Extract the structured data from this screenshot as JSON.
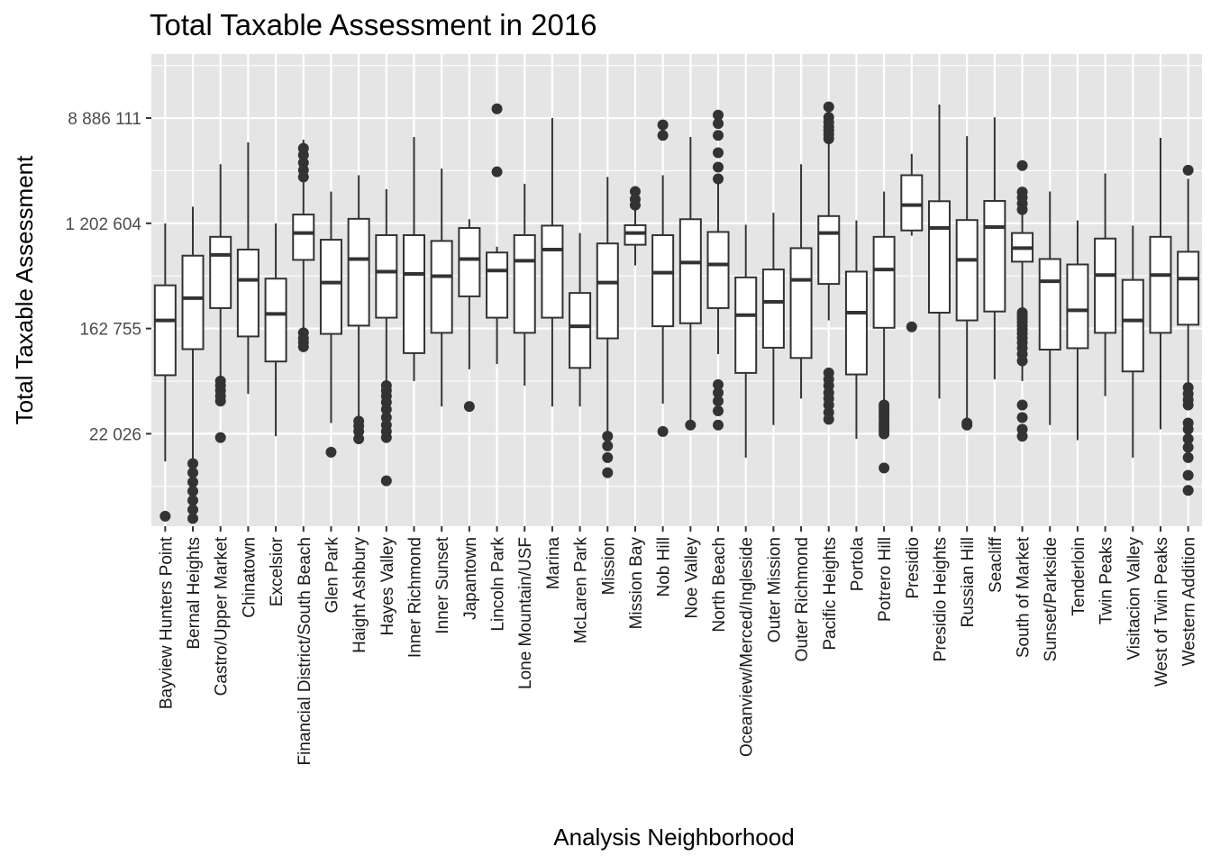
{
  "chart_data": {
    "type": "boxplot",
    "title": "Total Taxable Assessment in 2016",
    "xlabel": "Analysis Neighborhood",
    "ylabel": "Total Taxable Assessment",
    "y_scale": "log10",
    "yticks": [
      22026,
      162755,
      1202604,
      8886111
    ],
    "ytick_labels": [
      "22 026",
      "162 755",
      "1 202 604",
      "8 886 111"
    ],
    "ylim": [
      3800,
      30000000
    ],
    "grid": true,
    "legend": "none",
    "colors": {
      "panel": "#e5e5e5",
      "grid": "#ffffff",
      "box_fill": "#ffffff",
      "box_line": "#333333",
      "outlier": "#333333"
    },
    "categories": [
      "Bayview Hunters Point",
      "Bernal Heights",
      "Castro/Upper Market",
      "Chinatown",
      "Excelsior",
      "Financial District/South Beach",
      "Glen Park",
      "Haight Ashbury",
      "Hayes Valley",
      "Inner Richmond",
      "Inner Sunset",
      "Japantown",
      "Lincoln Park",
      "Lone Mountain/USF",
      "Marina",
      "McLaren Park",
      "Mission",
      "Mission Bay",
      "Nob Hill",
      "Noe Valley",
      "North Beach",
      "Oceanview/Merced/Ingleside",
      "Outer Mission",
      "Outer Richmond",
      "Pacific Heights",
      "Portola",
      "Potrero Hill",
      "Presidio",
      "Presidio Heights",
      "Russian Hill",
      "Seacliff",
      "South of Market",
      "Sunset/Parkside",
      "Tenderloin",
      "Twin Peaks",
      "Visitacion Valley",
      "West of Twin Peaks",
      "Western Addition"
    ],
    "boxes": [
      {
        "min": 13000,
        "q1": 67000,
        "median": 190000,
        "q3": 370000,
        "max": 1200000,
        "outliers": [
          4600
        ]
      },
      {
        "min": 4000,
        "q1": 110000,
        "median": 290000,
        "q3": 650000,
        "max": 1650000,
        "outliers": [
          4400,
          5200,
          6200,
          7400,
          8800,
          10500,
          12500
        ]
      },
      {
        "min": 40000,
        "q1": 240000,
        "median": 660000,
        "q3": 930000,
        "max": 3700000,
        "outliers": [
          20500,
          41000,
          45000,
          50000,
          55000,
          60000
        ]
      },
      {
        "min": 47000,
        "q1": 140000,
        "median": 410000,
        "q3": 730000,
        "max": 5600000,
        "outliers": []
      },
      {
        "min": 21000,
        "q1": 87000,
        "median": 215000,
        "q3": 420000,
        "max": 1200000,
        "outliers": []
      },
      {
        "min": 160000,
        "q1": 600000,
        "median": 1000000,
        "q3": 1420000,
        "max": 5900000,
        "outliers": [
          115000,
          125000,
          135000,
          150000,
          2900000,
          3300000,
          3800000,
          4400000,
          5000000
        ]
      },
      {
        "min": 27000,
        "q1": 147000,
        "median": 390000,
        "q3": 880000,
        "max": 2200000,
        "outliers": [
          15500
        ]
      },
      {
        "min": 24000,
        "q1": 172000,
        "median": 610000,
        "q3": 1310000,
        "max": 3000000,
        "outliers": [
          20000,
          23000,
          25500,
          28000
        ]
      },
      {
        "min": 30000,
        "q1": 200000,
        "median": 480000,
        "q3": 960000,
        "max": 2300000,
        "outliers": [
          9000,
          20500,
          23000,
          26000,
          30000,
          35000,
          40000,
          45000,
          50000,
          55000
        ]
      },
      {
        "min": 60000,
        "q1": 102000,
        "median": 460000,
        "q3": 960000,
        "max": 6200000,
        "outliers": []
      },
      {
        "min": 37000,
        "q1": 150000,
        "median": 440000,
        "q3": 860000,
        "max": 3400000,
        "outliers": []
      },
      {
        "min": 75000,
        "q1": 300000,
        "median": 610000,
        "q3": 1100000,
        "max": 1300000,
        "outliers": [
          37000
        ]
      },
      {
        "min": 83000,
        "q1": 200000,
        "median": 490000,
        "q3": 690000,
        "max": 770000,
        "outliers": [
          3200000,
          10600000
        ]
      },
      {
        "min": 55000,
        "q1": 150000,
        "median": 590000,
        "q3": 960000,
        "max": 2550000,
        "outliers": []
      },
      {
        "min": 37000,
        "q1": 200000,
        "median": 730000,
        "q3": 1150000,
        "max": 8900000,
        "outliers": []
      },
      {
        "min": 37000,
        "q1": 77000,
        "median": 170000,
        "q3": 320000,
        "max": 1000000,
        "outliers": []
      },
      {
        "min": 23000,
        "q1": 135000,
        "median": 390000,
        "q3": 820000,
        "max": 2900000,
        "outliers": [
          10500,
          14000,
          17500,
          21000
        ]
      },
      {
        "min": 540000,
        "q1": 800000,
        "median": 1000000,
        "q3": 1160000,
        "max": 2100000,
        "outliers": [
          1700000,
          1900000,
          2200000
        ]
      },
      {
        "min": 39000,
        "q1": 170000,
        "median": 470000,
        "q3": 960000,
        "max": 3000000,
        "outliers": [
          23000,
          6400000,
          7800000
        ]
      },
      {
        "min": 26000,
        "q1": 180000,
        "median": 570000,
        "q3": 1300000,
        "max": 6200000,
        "outliers": [
          26000
        ]
      },
      {
        "min": 100000,
        "q1": 240000,
        "median": 550000,
        "q3": 1020000,
        "max": 2800000,
        "outliers": [
          26000,
          34000,
          41000,
          48000,
          56000,
          2800000,
          3500000,
          4600000,
          6400000,
          8000000,
          9400000
        ]
      },
      {
        "min": 14000,
        "q1": 70000,
        "median": 210000,
        "q3": 430000,
        "max": 1170000,
        "outliers": []
      },
      {
        "min": 26000,
        "q1": 113000,
        "median": 270000,
        "q3": 500000,
        "max": 1470000,
        "outliers": []
      },
      {
        "min": 43000,
        "q1": 93000,
        "median": 410000,
        "q3": 750000,
        "max": 3700000,
        "outliers": []
      },
      {
        "min": 190000,
        "q1": 380000,
        "median": 1000000,
        "q3": 1380000,
        "max": 10500000,
        "outliers": [
          29000,
          33000,
          38000,
          43000,
          48000,
          55000,
          62000,
          70000,
          6000000,
          6500000,
          7000000,
          7500000,
          8200000,
          9000000,
          11000000
        ]
      },
      {
        "min": 20000,
        "q1": 68000,
        "median": 220000,
        "q3": 480000,
        "max": 1270000,
        "outliers": []
      },
      {
        "min": 26000,
        "q1": 165000,
        "median": 500000,
        "q3": 930000,
        "max": 2200000,
        "outliers": [
          11500,
          22000,
          23500,
          25000,
          26500,
          28000,
          30000,
          32000,
          34000,
          36000,
          38000
        ]
      },
      {
        "min": 950000,
        "q1": 1050000,
        "median": 1700000,
        "q3": 3000000,
        "max": 4500000,
        "outliers": [
          168000
        ]
      },
      {
        "min": 43000,
        "q1": 220000,
        "median": 1100000,
        "q3": 1830000,
        "max": 11500000,
        "outliers": []
      },
      {
        "min": 26000,
        "q1": 190000,
        "median": 600000,
        "q3": 1280000,
        "max": 6300000,
        "outliers": [
          26000,
          27000
        ]
      },
      {
        "min": 62000,
        "q1": 225000,
        "median": 1120000,
        "q3": 1840000,
        "max": 9000000,
        "outliers": []
      },
      {
        "min": 60000,
        "q1": 580000,
        "median": 750000,
        "q3": 1000000,
        "max": 1450000,
        "outliers": [
          21000,
          24000,
          30000,
          38000,
          88000,
          100000,
          112000,
          124000,
          136000,
          148000,
          160000,
          172000,
          184000,
          196000,
          208000,
          220000,
          1560000,
          1750000,
          1960000,
          2180000,
          3600000
        ]
      },
      {
        "min": 26000,
        "q1": 109000,
        "median": 400000,
        "q3": 610000,
        "max": 2200000,
        "outliers": []
      },
      {
        "min": 19500,
        "q1": 112000,
        "median": 230000,
        "q3": 550000,
        "max": 1270000,
        "outliers": []
      },
      {
        "min": 45000,
        "q1": 150000,
        "median": 450000,
        "q3": 900000,
        "max": 3100000,
        "outliers": []
      },
      {
        "min": 14000,
        "q1": 72000,
        "median": 190000,
        "q3": 410000,
        "max": 1150000,
        "outliers": []
      },
      {
        "min": 24000,
        "q1": 150000,
        "median": 450000,
        "q3": 930000,
        "max": 6100000,
        "outliers": []
      },
      {
        "min": 46000,
        "q1": 175000,
        "median": 420000,
        "q3": 700000,
        "max": 2800000,
        "outliers": [
          7500,
          10000,
          14000,
          17000,
          20000,
          24000,
          27000,
          38000,
          42000,
          47000,
          53000,
          3300000
        ]
      }
    ]
  }
}
